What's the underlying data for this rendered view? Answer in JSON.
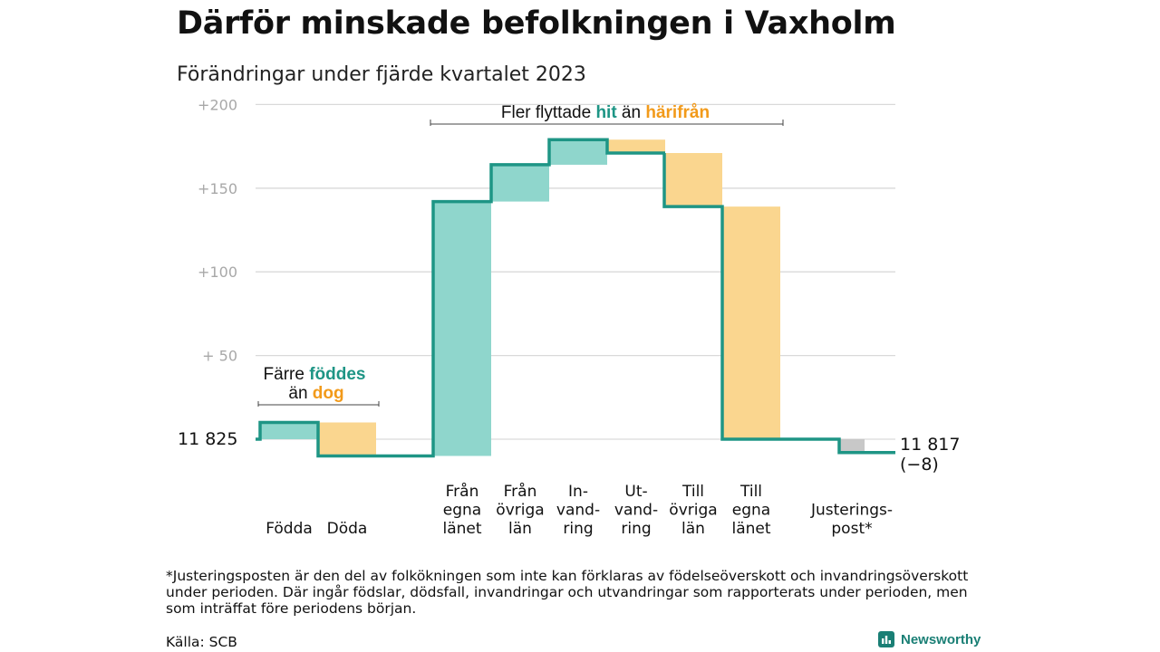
{
  "chart_data": {
    "type": "waterfall",
    "title": "Därför minskade befolkningen i Vaxholm",
    "subtitle": "Förändringar under fjärde kvartalet 2023",
    "yaxis": {
      "ticks": [
        200,
        150,
        100,
        50
      ],
      "tick_labels": [
        "+200",
        "+150",
        "+100",
        "+  50"
      ],
      "ylim": [
        -10,
        200
      ],
      "grid": true
    },
    "start": {
      "label": "11  825",
      "value": 11825
    },
    "end": {
      "label": "11 817",
      "change_label": "(−8)",
      "value": 11817,
      "change": -8
    },
    "steps": [
      {
        "label_lines": [
          "Födda"
        ],
        "value": 10,
        "kind": "in"
      },
      {
        "label_lines": [
          "Döda"
        ],
        "value": -20,
        "kind": "out"
      },
      {
        "label_lines": [
          "Från",
          "egna",
          "länet"
        ],
        "value": 152,
        "kind": "in"
      },
      {
        "label_lines": [
          "Från",
          "övriga",
          "län"
        ],
        "value": 22,
        "kind": "in"
      },
      {
        "label_lines": [
          "In-",
          "vand-",
          "ring"
        ],
        "value": 15,
        "kind": "in"
      },
      {
        "label_lines": [
          "Ut-",
          "vand-",
          "ring"
        ],
        "value": -8,
        "kind": "out"
      },
      {
        "label_lines": [
          "Till",
          "övriga",
          "län"
        ],
        "value": -32,
        "kind": "out"
      },
      {
        "label_lines": [
          "Till",
          "egna",
          "länet"
        ],
        "value": -139,
        "kind": "out"
      },
      {
        "label_lines": [
          "Justerings-",
          "post*"
        ],
        "value": -8,
        "kind": "adjust"
      }
    ],
    "annotations": {
      "births": {
        "line1_pre": "Färre ",
        "line1_hi": "föddes",
        "line2_pre": "än ",
        "line2_hi": "dog"
      },
      "moves": {
        "pre": "Fler flyttade ",
        "hi1": "hit",
        "mid": " än ",
        "hi2": "härifrån"
      }
    },
    "colors": {
      "in_fill": "#8fd6cc",
      "out_fill": "#fad68f",
      "adjust_fill": "#c8c8c8",
      "line": "#1e9585",
      "hit_text": "#1e9585",
      "hari_text": "#f29a1a",
      "grid": "#d9d9d9",
      "tick_text": "#a8a8a8"
    }
  },
  "footnote": "*Justeringsposten är den del av folkökningen som inte kan förklaras av födelseöverskott och invandringsöverskott under perioden. Där ingår födslar, dödsfall, invandringar och utvandringar som rapporterats under perioden, men som inträffat före periodens början.",
  "source": "Källa: SCB",
  "brand": {
    "name": "Newsworthy",
    "icon": "newsworthy-logo-icon"
  }
}
